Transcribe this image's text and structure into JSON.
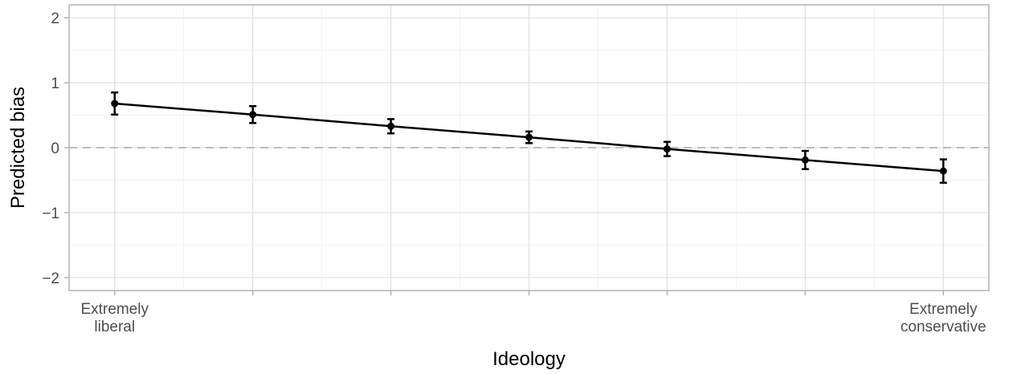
{
  "chart_data": {
    "type": "line",
    "xlabel": "Ideology",
    "ylabel": "Predicted bias",
    "x": [
      1,
      2,
      3,
      4,
      5,
      6,
      7
    ],
    "x_tick_labels": [
      {
        "x": 1,
        "lines": [
          "Extremely",
          "liberal"
        ]
      },
      {
        "x": 7,
        "lines": [
          "Extremely",
          "conservative"
        ]
      }
    ],
    "xlim": [
      0.67,
      7.33
    ],
    "ylim": [
      -2.2,
      2.2
    ],
    "y_ticks": [
      2,
      1,
      0,
      -1,
      -2
    ],
    "y_tick_labels": [
      "2",
      "1",
      "0",
      "−1",
      "−2"
    ],
    "series": [
      {
        "values": [
          0.68,
          0.51,
          0.33,
          0.16,
          -0.02,
          -0.19,
          -0.36
        ],
        "lower": [
          0.51,
          0.38,
          0.22,
          0.07,
          -0.13,
          -0.33,
          -0.54
        ],
        "upper": [
          0.85,
          0.64,
          0.44,
          0.25,
          0.09,
          -0.05,
          -0.18
        ]
      }
    ],
    "reference_line": {
      "y": 0,
      "style": "dashed"
    },
    "grid": true,
    "legend": "none",
    "colors": {
      "series": "#000000",
      "grid": "#e0e0e0",
      "frame": "#b3b3b3",
      "reference": "#bdbdbd"
    }
  }
}
